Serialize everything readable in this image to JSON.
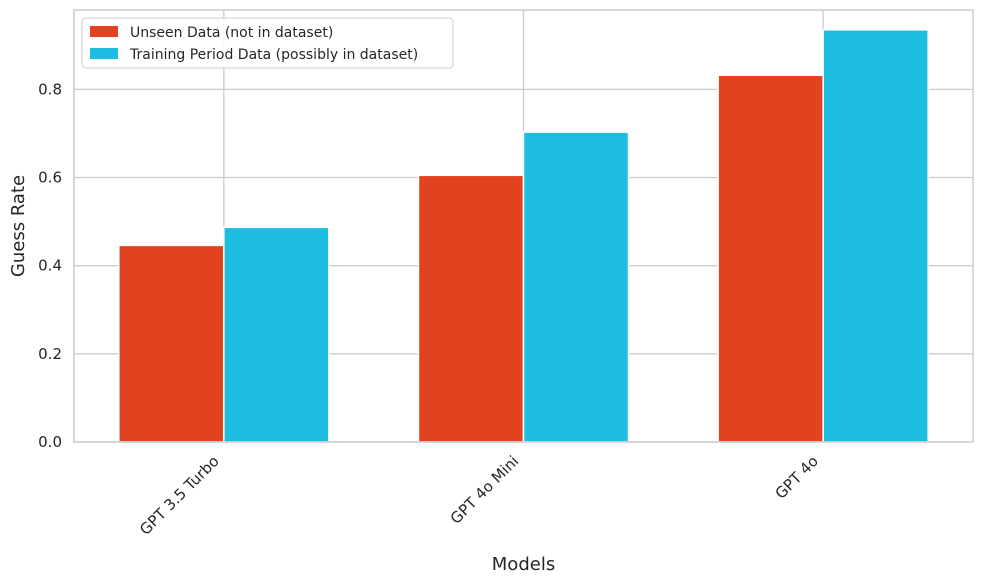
{
  "chart_data": {
    "type": "bar",
    "title": "",
    "xlabel": "Models",
    "ylabel": "Guess Rate",
    "categories": [
      "GPT 3.5 Turbo",
      "GPT 4o Mini",
      "GPT 4o"
    ],
    "series": [
      {
        "name": "Unseen Data (not in dataset)",
        "color": "#e2421f",
        "values": [
          0.446,
          0.605,
          0.832
        ]
      },
      {
        "name": "Training Period Data (possibly in dataset)",
        "color": "#1dbde0",
        "values": [
          0.487,
          0.703,
          0.935
        ]
      }
    ],
    "ylim": [
      0,
      0.98
    ],
    "yticks": [
      0.0,
      0.2,
      0.4,
      0.6,
      0.8
    ],
    "ytick_labels": [
      "0.0",
      "0.2",
      "0.4",
      "0.6",
      "0.8"
    ],
    "grid": true,
    "legend_position": "upper-left",
    "colors": {
      "grid": "#cccccc",
      "frame": "#cccccc",
      "text": "#262626"
    }
  }
}
